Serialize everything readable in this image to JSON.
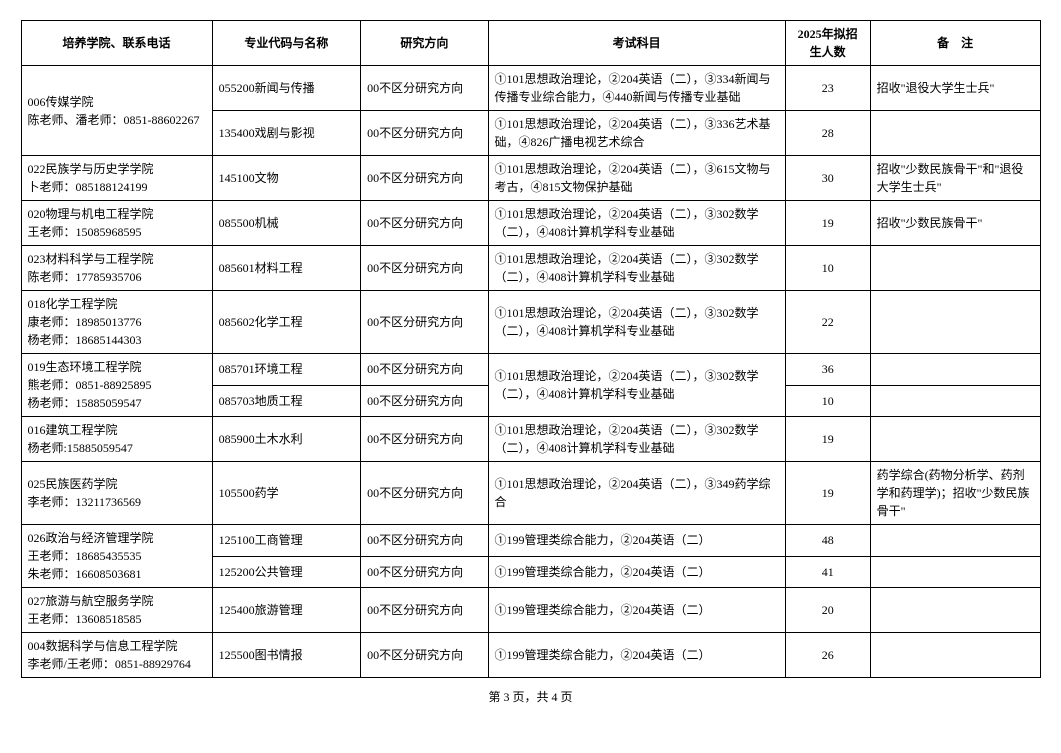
{
  "headers": {
    "dept": "培养学院、联系电话",
    "major": "专业代码与名称",
    "direction": "研究方向",
    "subjects": "考试科目",
    "count": "2025年拟招生人数",
    "note": "备　注"
  },
  "footer": "第 3 页，共 4 页",
  "depts": [
    {
      "name": "006传媒学院\n陈老师、潘老师：0851-88602267",
      "rows": [
        {
          "major": "055200新闻与传播",
          "direction": "00不区分研究方向",
          "subjects": "①101思想政治理论，②204英语（二），③334新闻与传播专业综合能力，④440新闻与传播专业基础",
          "count": "23",
          "note": "招收\"退役大学生士兵\""
        },
        {
          "major": "135400戏剧与影视",
          "direction": "00不区分研究方向",
          "subjects": "①101思想政治理论，②204英语（二），③336艺术基础，④826广播电视艺术综合",
          "count": "28",
          "note": ""
        }
      ]
    },
    {
      "name": "022民族学与历史学学院\n卜老师：085188124199",
      "rows": [
        {
          "major": "145100文物",
          "direction": "00不区分研究方向",
          "subjects": "①101思想政治理论，②204英语（二），③615文物与考古，④815文物保护基础",
          "count": "30",
          "note": "招收\"少数民族骨干\"和\"退役大学生士兵\""
        }
      ]
    },
    {
      "name": "020物理与机电工程学院\n王老师：15085968595",
      "rows": [
        {
          "major": "085500机械",
          "direction": "00不区分研究方向",
          "subjects": "①101思想政治理论，②204英语（二），③302数学（二），④408计算机学科专业基础",
          "count": "19",
          "note": "招收\"少数民族骨干\""
        }
      ]
    },
    {
      "name": "023材料科学与工程学院\n陈老师：17785935706",
      "rows": [
        {
          "major": "085601材料工程",
          "direction": "00不区分研究方向",
          "subjects": "①101思想政治理论，②204英语（二），③302数学（二），④408计算机学科专业基础",
          "count": "10",
          "note": ""
        }
      ]
    },
    {
      "name": "018化学工程学院\n康老师：18985013776\n杨老师：18685144303",
      "rows": [
        {
          "major": "085602化学工程",
          "direction": "00不区分研究方向",
          "subjects": "①101思想政治理论，②204英语（二），③302数学（二），④408计算机学科专业基础",
          "count": "22",
          "note": ""
        }
      ]
    },
    {
      "name": "019生态环境工程学院\n熊老师：0851-88925895\n杨老师：15885059547",
      "rows": [
        {
          "major": "085701环境工程",
          "direction": "00不区分研究方向",
          "subjects": "①101思想政治理论，②204英语（二），③302数学（二），④408计算机学科专业基础",
          "count": "36",
          "note": "",
          "subjSpan": 2
        },
        {
          "major": "085703地质工程",
          "direction": "00不区分研究方向",
          "count": "10",
          "note": ""
        }
      ]
    },
    {
      "name": "016建筑工程学院\n杨老师:15885059547",
      "rows": [
        {
          "major": "085900土木水利",
          "direction": "00不区分研究方向",
          "subjects": "①101思想政治理论，②204英语（二），③302数学（二），④408计算机学科专业基础",
          "count": "19",
          "note": ""
        }
      ]
    },
    {
      "name": "025民族医药学院\n李老师：13211736569",
      "rows": [
        {
          "major": "105500药学",
          "direction": "00不区分研究方向",
          "subjects": "①101思想政治理论，②204英语（二），③349药学综合",
          "count": "19",
          "note": "药学综合(药物分析学、药剂学和药理学)；招收\"少数民族骨干\""
        }
      ]
    },
    {
      "name": "026政治与经济管理学院\n王老师：18685435535\n朱老师：16608503681",
      "rows": [
        {
          "major": "125100工商管理",
          "direction": "00不区分研究方向",
          "subjects": "①199管理类综合能力，②204英语（二）",
          "count": "48",
          "note": ""
        },
        {
          "major": "125200公共管理",
          "direction": "00不区分研究方向",
          "subjects": "①199管理类综合能力，②204英语（二）",
          "count": "41",
          "note": ""
        }
      ]
    },
    {
      "name": "027旅游与航空服务学院\n王老师：13608518585",
      "rows": [
        {
          "major": "125400旅游管理",
          "direction": "00不区分研究方向",
          "subjects": "①199管理类综合能力，②204英语（二）",
          "count": "20",
          "note": ""
        }
      ]
    },
    {
      "name": "004数据科学与信息工程学院\n李老师/王老师：0851-88929764",
      "rows": [
        {
          "major": "125500图书情报",
          "direction": "00不区分研究方向",
          "subjects": "①199管理类综合能力，②204英语（二）",
          "count": "26",
          "note": ""
        }
      ]
    }
  ]
}
